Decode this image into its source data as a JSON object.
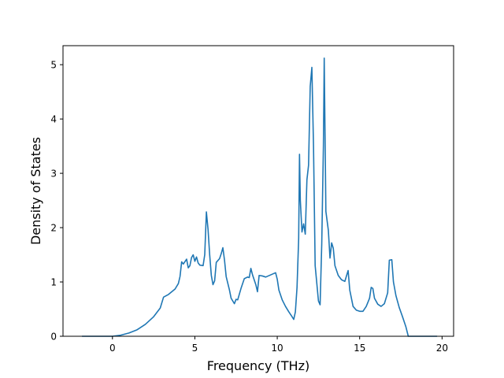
{
  "chart_data": {
    "type": "line",
    "title": "",
    "xlabel": "Frequency (THz)",
    "ylabel": "Density of States",
    "xlim": [
      -3.0,
      20.7
    ],
    "ylim": [
      0,
      5.35
    ],
    "x_ticks": [
      0,
      5,
      10,
      15,
      20
    ],
    "y_ticks": [
      0,
      1,
      2,
      3,
      4,
      5
    ],
    "grid": false,
    "legend": "none",
    "series": [
      {
        "color": "#1f77b4",
        "points": [
          [
            -1.85,
            0.0
          ],
          [
            -1.0,
            0.0
          ],
          [
            0.0,
            0.0
          ],
          [
            0.5,
            0.02
          ],
          [
            1.0,
            0.06
          ],
          [
            1.5,
            0.12
          ],
          [
            2.0,
            0.22
          ],
          [
            2.5,
            0.36
          ],
          [
            2.9,
            0.52
          ],
          [
            3.1,
            0.72
          ],
          [
            3.4,
            0.77
          ],
          [
            3.8,
            0.87
          ],
          [
            4.0,
            0.97
          ],
          [
            4.1,
            1.1
          ],
          [
            4.2,
            1.37
          ],
          [
            4.3,
            1.33
          ],
          [
            4.5,
            1.42
          ],
          [
            4.6,
            1.26
          ],
          [
            4.7,
            1.3
          ],
          [
            4.8,
            1.45
          ],
          [
            4.9,
            1.5
          ],
          [
            5.0,
            1.38
          ],
          [
            5.1,
            1.46
          ],
          [
            5.2,
            1.35
          ],
          [
            5.3,
            1.31
          ],
          [
            5.5,
            1.3
          ],
          [
            5.6,
            1.5
          ],
          [
            5.7,
            2.29
          ],
          [
            5.8,
            1.97
          ],
          [
            5.9,
            1.5
          ],
          [
            6.0,
            1.12
          ],
          [
            6.1,
            0.95
          ],
          [
            6.2,
            1.02
          ],
          [
            6.3,
            1.36
          ],
          [
            6.5,
            1.43
          ],
          [
            6.6,
            1.52
          ],
          [
            6.7,
            1.63
          ],
          [
            6.8,
            1.4
          ],
          [
            6.9,
            1.1
          ],
          [
            7.1,
            0.85
          ],
          [
            7.2,
            0.7
          ],
          [
            7.4,
            0.6
          ],
          [
            7.5,
            0.68
          ],
          [
            7.6,
            0.67
          ],
          [
            7.8,
            0.88
          ],
          [
            8.0,
            1.06
          ],
          [
            8.2,
            1.09
          ],
          [
            8.3,
            1.08
          ],
          [
            8.4,
            1.25
          ],
          [
            8.5,
            1.13
          ],
          [
            8.7,
            0.95
          ],
          [
            8.8,
            0.82
          ],
          [
            8.9,
            1.12
          ],
          [
            9.1,
            1.11
          ],
          [
            9.3,
            1.09
          ],
          [
            9.6,
            1.13
          ],
          [
            9.9,
            1.17
          ],
          [
            10.0,
            1.05
          ],
          [
            10.1,
            0.85
          ],
          [
            10.3,
            0.67
          ],
          [
            10.5,
            0.55
          ],
          [
            10.7,
            0.45
          ],
          [
            10.9,
            0.36
          ],
          [
            11.0,
            0.31
          ],
          [
            11.1,
            0.45
          ],
          [
            11.2,
            0.9
          ],
          [
            11.3,
            1.8
          ],
          [
            11.35,
            3.35
          ],
          [
            11.4,
            2.5
          ],
          [
            11.5,
            1.92
          ],
          [
            11.6,
            2.07
          ],
          [
            11.7,
            1.88
          ],
          [
            11.8,
            2.88
          ],
          [
            11.9,
            3.15
          ],
          [
            12.0,
            4.6
          ],
          [
            12.1,
            4.95
          ],
          [
            12.2,
            3.5
          ],
          [
            12.3,
            1.3
          ],
          [
            12.5,
            0.65
          ],
          [
            12.6,
            0.58
          ],
          [
            12.7,
            1.7
          ],
          [
            12.8,
            3.5
          ],
          [
            12.85,
            5.12
          ],
          [
            12.95,
            2.3
          ],
          [
            13.1,
            1.95
          ],
          [
            13.2,
            1.44
          ],
          [
            13.3,
            1.72
          ],
          [
            13.4,
            1.62
          ],
          [
            13.5,
            1.3
          ],
          [
            13.7,
            1.12
          ],
          [
            13.9,
            1.04
          ],
          [
            14.1,
            1.01
          ],
          [
            14.3,
            1.21
          ],
          [
            14.4,
            0.85
          ],
          [
            14.6,
            0.55
          ],
          [
            14.8,
            0.48
          ],
          [
            15.0,
            0.46
          ],
          [
            15.2,
            0.46
          ],
          [
            15.4,
            0.55
          ],
          [
            15.6,
            0.7
          ],
          [
            15.7,
            0.9
          ],
          [
            15.8,
            0.88
          ],
          [
            15.9,
            0.7
          ],
          [
            16.1,
            0.59
          ],
          [
            16.3,
            0.55
          ],
          [
            16.5,
            0.6
          ],
          [
            16.7,
            0.8
          ],
          [
            16.8,
            1.4
          ],
          [
            16.95,
            1.41
          ],
          [
            17.05,
            1.0
          ],
          [
            17.2,
            0.75
          ],
          [
            17.4,
            0.53
          ],
          [
            17.6,
            0.36
          ],
          [
            17.8,
            0.18
          ],
          [
            17.95,
            0.0
          ],
          [
            19.7,
            0.0
          ]
        ]
      }
    ]
  }
}
